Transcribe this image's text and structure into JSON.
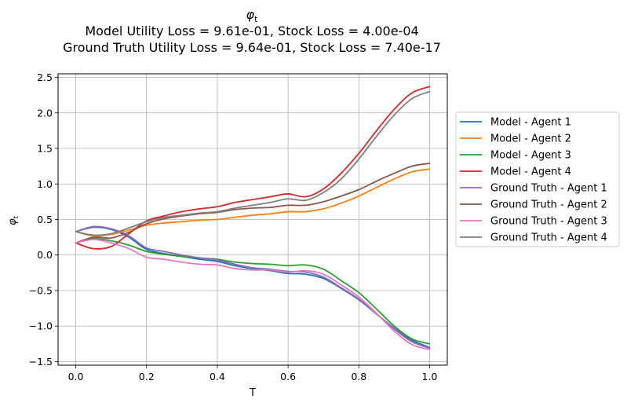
{
  "chart_data": {
    "type": "line",
    "title_symbol": "φ",
    "title_subscript": "t",
    "title_line2": "Model Utility Loss = 9.61e-01, Stock Loss = 4.00e-04",
    "title_line3": "Ground Truth Utility Loss = 9.64e-01, Stock Loss = 7.40e-17",
    "xlabel": "T",
    "ylabel_symbol": "φ",
    "ylabel_subscript": "t",
    "xlim": [
      -0.05,
      1.05
    ],
    "ylim": [
      -1.55,
      2.55
    ],
    "xticks": [
      0.0,
      0.2,
      0.4,
      0.6,
      0.8,
      1.0
    ],
    "xtick_labels": [
      "0.0",
      "0.2",
      "0.4",
      "0.6",
      "0.8",
      "1.0"
    ],
    "yticks": [
      -1.5,
      -1.0,
      -0.5,
      0.0,
      0.5,
      1.0,
      1.5,
      2.0,
      2.5
    ],
    "ytick_labels": [
      "−1.5",
      "−1.0",
      "−0.5",
      "0.0",
      "0.5",
      "1.0",
      "1.5",
      "2.0",
      "2.5"
    ],
    "grid": true,
    "legend_position": "outside-right",
    "x": [
      0.0,
      0.05,
      0.1,
      0.15,
      0.2,
      0.25,
      0.3,
      0.35,
      0.4,
      0.45,
      0.5,
      0.55,
      0.6,
      0.65,
      0.7,
      0.75,
      0.8,
      0.85,
      0.9,
      0.95,
      1.0
    ],
    "series": [
      {
        "name": "Model - Agent 1",
        "color": "#1f77b4",
        "values": [
          0.33,
          0.39,
          0.36,
          0.25,
          0.08,
          0.02,
          -0.02,
          -0.06,
          -0.09,
          -0.15,
          -0.19,
          -0.22,
          -0.26,
          -0.27,
          -0.33,
          -0.47,
          -0.63,
          -0.83,
          -1.03,
          -1.2,
          -1.3
        ]
      },
      {
        "name": "Model - Agent 2",
        "color": "#ff7f0e",
        "values": [
          0.33,
          0.27,
          0.29,
          0.35,
          0.42,
          0.45,
          0.47,
          0.49,
          0.5,
          0.53,
          0.56,
          0.58,
          0.61,
          0.61,
          0.65,
          0.73,
          0.83,
          0.95,
          1.07,
          1.17,
          1.21
        ]
      },
      {
        "name": "Model - Agent 3",
        "color": "#2ca02c",
        "values": [
          0.17,
          0.23,
          0.2,
          0.14,
          0.05,
          0.01,
          -0.02,
          -0.04,
          -0.06,
          -0.1,
          -0.12,
          -0.13,
          -0.15,
          -0.14,
          -0.2,
          -0.36,
          -0.53,
          -0.76,
          -1.0,
          -1.18,
          -1.25
        ]
      },
      {
        "name": "Model - Agent 4",
        "color": "#d62728",
        "values": [
          0.17,
          0.09,
          0.12,
          0.3,
          0.48,
          0.55,
          0.61,
          0.65,
          0.68,
          0.74,
          0.78,
          0.82,
          0.86,
          0.82,
          0.93,
          1.15,
          1.43,
          1.75,
          2.05,
          2.28,
          2.37
        ]
      },
      {
        "name": "Ground Truth - Agent 1",
        "color": "#9467bd",
        "values": [
          0.33,
          0.4,
          0.37,
          0.27,
          0.1,
          0.05,
          0.0,
          -0.04,
          -0.07,
          -0.13,
          -0.18,
          -0.2,
          -0.23,
          -0.24,
          -0.31,
          -0.46,
          -0.62,
          -0.83,
          -1.04,
          -1.22,
          -1.31
        ]
      },
      {
        "name": "Ground Truth - Agent 2",
        "color": "#8c564b",
        "values": [
          0.17,
          0.25,
          0.24,
          0.32,
          0.44,
          0.51,
          0.55,
          0.58,
          0.6,
          0.64,
          0.66,
          0.67,
          0.7,
          0.7,
          0.75,
          0.83,
          0.92,
          1.04,
          1.15,
          1.25,
          1.29
        ]
      },
      {
        "name": "Ground Truth - Agent 3",
        "color": "#e377c2",
        "values": [
          0.17,
          0.22,
          0.17,
          0.09,
          -0.03,
          -0.06,
          -0.1,
          -0.13,
          -0.14,
          -0.19,
          -0.21,
          -0.21,
          -0.24,
          -0.22,
          -0.27,
          -0.42,
          -0.59,
          -0.82,
          -1.07,
          -1.26,
          -1.33
        ]
      },
      {
        "name": "Ground Truth - Agent 4",
        "color": "#7f7f7f",
        "values": [
          0.33,
          0.28,
          0.3,
          0.38,
          0.47,
          0.53,
          0.56,
          0.59,
          0.61,
          0.66,
          0.7,
          0.74,
          0.79,
          0.77,
          0.88,
          1.07,
          1.35,
          1.67,
          1.97,
          2.2,
          2.3
        ]
      }
    ]
  }
}
